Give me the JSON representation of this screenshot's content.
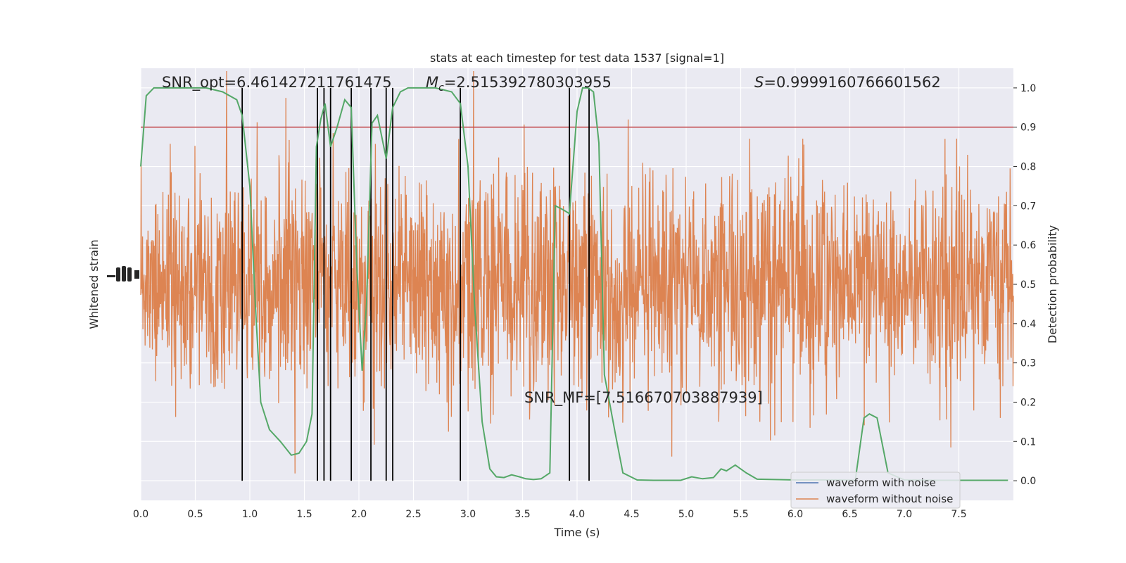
{
  "chart_data": {
    "type": "line",
    "title": "stats at each timestep for test data 1537 [signal=1]",
    "xlabel": "Time (s)",
    "ylabel_left": "Whitened strain",
    "ylabel_right": "Detection probability",
    "xlim": [
      0.0,
      8.0
    ],
    "ylim_right": [
      -0.05,
      1.05
    ],
    "x_ticks": [
      "0.0",
      "0.5",
      "1.0",
      "1.5",
      "2.0",
      "2.5",
      "3.0",
      "3.5",
      "4.0",
      "4.5",
      "5.0",
      "5.5",
      "6.0",
      "6.5",
      "7.0",
      "7.5"
    ],
    "y_ticks_right": [
      "0.0",
      "0.1",
      "0.2",
      "0.3",
      "0.4",
      "0.5",
      "0.6",
      "0.7",
      "0.8",
      "0.9",
      "1.0"
    ],
    "grid": true,
    "legend_position": "bottom-right",
    "series": [
      {
        "name": "waveform with noise",
        "color": "#4c72b0",
        "kind": "strain (hidden under noise-free trace)"
      },
      {
        "name": "waveform without noise",
        "color": "#dd8452",
        "kind": "strain, dense noise-like trace spanning full axis"
      },
      {
        "color": "#55a868",
        "kind": "detection probability",
        "x": [
          0.0,
          0.05,
          0.12,
          0.3,
          0.6,
          0.75,
          0.88,
          0.93,
          1.0,
          1.05,
          1.1,
          1.18,
          1.28,
          1.38,
          1.45,
          1.52,
          1.57,
          1.61,
          1.65,
          1.69,
          1.74,
          1.8,
          1.87,
          1.93,
          1.98,
          2.03,
          2.07,
          2.12,
          2.17,
          2.25,
          2.31,
          2.38,
          2.45,
          2.52,
          2.7,
          2.85,
          2.93,
          3.0,
          3.06,
          3.13,
          3.2,
          3.26,
          3.33,
          3.4,
          3.47,
          3.53,
          3.6,
          3.67,
          3.75,
          3.8,
          3.87,
          3.93,
          4.0,
          4.05,
          4.1,
          4.15,
          4.2,
          4.25,
          4.35,
          4.42,
          4.55,
          4.7,
          4.85,
          4.95,
          5.05,
          5.15,
          5.25,
          5.32,
          5.37,
          5.45,
          5.55,
          5.65,
          5.8,
          6.0,
          6.2,
          6.4,
          6.55,
          6.63,
          6.68,
          6.75,
          6.85,
          7.0,
          7.3,
          7.6,
          7.95
        ],
        "y": [
          0.8,
          0.98,
          1.0,
          1.0,
          1.0,
          0.99,
          0.97,
          0.93,
          0.75,
          0.45,
          0.2,
          0.13,
          0.1,
          0.065,
          0.07,
          0.1,
          0.17,
          0.85,
          0.92,
          0.96,
          0.85,
          0.9,
          0.97,
          0.95,
          0.55,
          0.28,
          0.45,
          0.91,
          0.93,
          0.82,
          0.95,
          0.99,
          1.0,
          1.0,
          1.0,
          0.99,
          0.96,
          0.8,
          0.45,
          0.15,
          0.03,
          0.01,
          0.008,
          0.015,
          0.01,
          0.005,
          0.003,
          0.005,
          0.02,
          0.7,
          0.69,
          0.68,
          0.94,
          1.0,
          1.0,
          0.99,
          0.86,
          0.27,
          0.12,
          0.02,
          0.002,
          0.001,
          0.001,
          0.001,
          0.01,
          0.005,
          0.008,
          0.03,
          0.025,
          0.04,
          0.02,
          0.004,
          0.003,
          0.002,
          0.002,
          0.002,
          0.001,
          0.16,
          0.17,
          0.16,
          0.02,
          0.002,
          0.001,
          0.001,
          0.001
        ]
      }
    ],
    "threshold": {
      "value": 0.9,
      "color": "#c44e52"
    },
    "event_lines_x": [
      0.93,
      1.62,
      1.68,
      1.74,
      1.93,
      2.11,
      2.25,
      2.31,
      2.93,
      3.93,
      4.11
    ],
    "annotations": {
      "snr_opt": "SNR_opt=6.461427211761475",
      "mc_symbol": "M",
      "mc_sub": "c",
      "mc_value": "=2.515392780303955",
      "s_symbol": "S",
      "s_value": "=0.9999160766601562",
      "snr_mf": "SNR_MF=[7.516670703887939]"
    },
    "colors": {
      "axes_bg": "#eaeaf2",
      "grid": "#ffffff",
      "text": "#262626",
      "event_line": "#000000"
    }
  }
}
